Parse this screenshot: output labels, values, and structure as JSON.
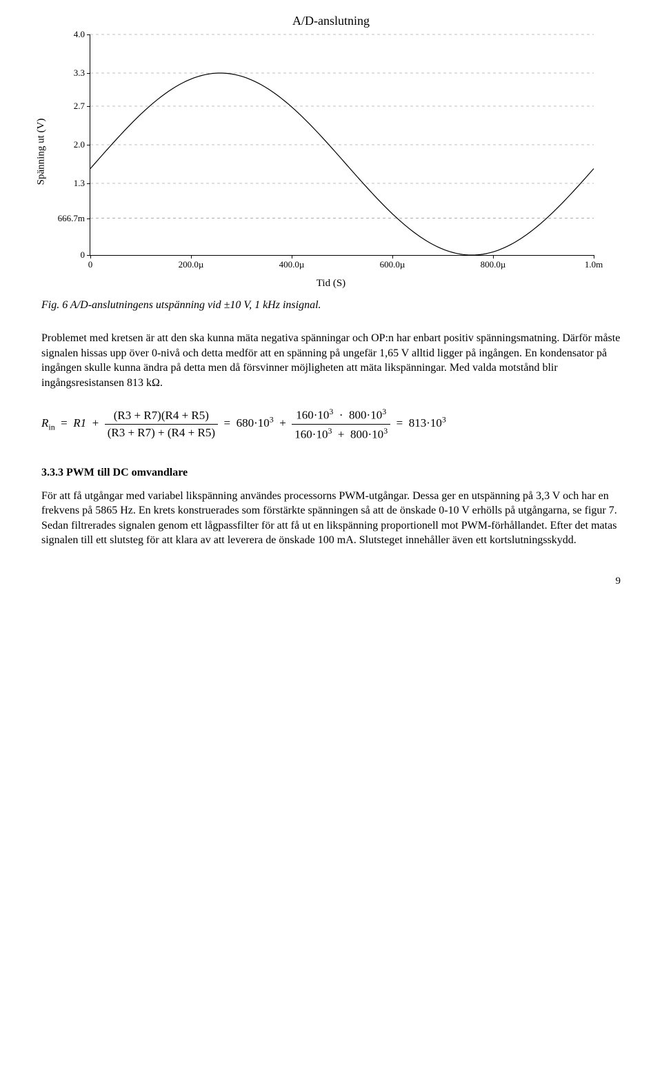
{
  "chart": {
    "type": "line",
    "title": "A/D-anslutning",
    "y_label": "Spänning ut (V)",
    "x_label": "Tid (S)",
    "y_ticks": [
      {
        "v": 4.0,
        "label": "4.0"
      },
      {
        "v": 3.3,
        "label": "3.3"
      },
      {
        "v": 2.7,
        "label": "2.7"
      },
      {
        "v": 2.0,
        "label": "2.0"
      },
      {
        "v": 1.3,
        "label": "1.3"
      },
      {
        "v": 0.6667,
        "label": "666.7m"
      },
      {
        "v": 0.0,
        "label": "0"
      }
    ],
    "x_ticks": [
      {
        "v": 0.0,
        "label": "0"
      },
      {
        "v": 0.0002,
        "label": "200.0µ"
      },
      {
        "v": 0.0004,
        "label": "400.0µ"
      },
      {
        "v": 0.0006,
        "label": "600.0µ"
      },
      {
        "v": 0.0008,
        "label": "800.0µ"
      },
      {
        "v": 0.001,
        "label": "1.0m"
      }
    ],
    "xlim": [
      0,
      0.001
    ],
    "ylim": [
      0,
      4.0
    ],
    "curve": {
      "frequency_hz": 1000,
      "offset_v": 1.65,
      "amplitude_v": 1.65,
      "phase_samples": -0.25,
      "line_color": "#000000",
      "line_width": 1.2,
      "n_samples": 200
    },
    "grid": {
      "show_h": true,
      "show_v": false,
      "color": "#808080",
      "dash": "4,4",
      "width": 0.6
    },
    "axis_color": "#000000",
    "title_fontsize": 18,
    "label_fontsize": 15,
    "tick_fontsize": 13
  },
  "caption": "Fig. 6 A/D-anslutningens utspänning vid ±10 V, 1 kHz insignal.",
  "paragraph1": "Problemet med kretsen är att den ska kunna mäta negativa spänningar och OP:n har enbart positiv spänningsmatning. Därför måste signalen hissas upp över 0-nivå och detta medför att en spänning på ungefär 1,65 V alltid ligger på ingången. En kondensator på ingången skulle kunna ändra på detta men då försvinner möjligheten att mäta likspänningar. Med valda motstånd blir ingångsresistansen 813 kΩ.",
  "equation": {
    "lhs_sub": "in",
    "r1": "R1",
    "num1": "(R3 + R7)(R4 + R5)",
    "den1": "(R3 + R7) + (R4 + R5)",
    "val1": "680·10",
    "val1_exp": "3",
    "num2a": "160·10",
    "num2a_exp": "3",
    "num2b": "800·10",
    "num2b_exp": "3",
    "den2a": "160·10",
    "den2a_exp": "3",
    "den2b": "800·10",
    "den2b_exp": "3",
    "result": "813·10",
    "result_exp": "3"
  },
  "section_heading": "3.3.3 PWM till DC omvandlare",
  "paragraph2": "För att få utgångar med variabel likspänning användes processorns PWM-utgångar. Dessa ger en utspänning på 3,3 V och har en frekvens på 5865 Hz. En krets konstruerades som förstärkte spänningen så att de önskade 0-10 V erhölls på utgångarna, se figur 7. Sedan filtrerades signalen genom ett lågpassfilter för att få ut en likspänning proportionell mot PWM-förhållandet. Efter det matas signalen till ett slutsteg för att klara av att leverera de önskade 100 mA. Slutsteget innehåller även ett kortslutningsskydd.",
  "page_number": "9"
}
